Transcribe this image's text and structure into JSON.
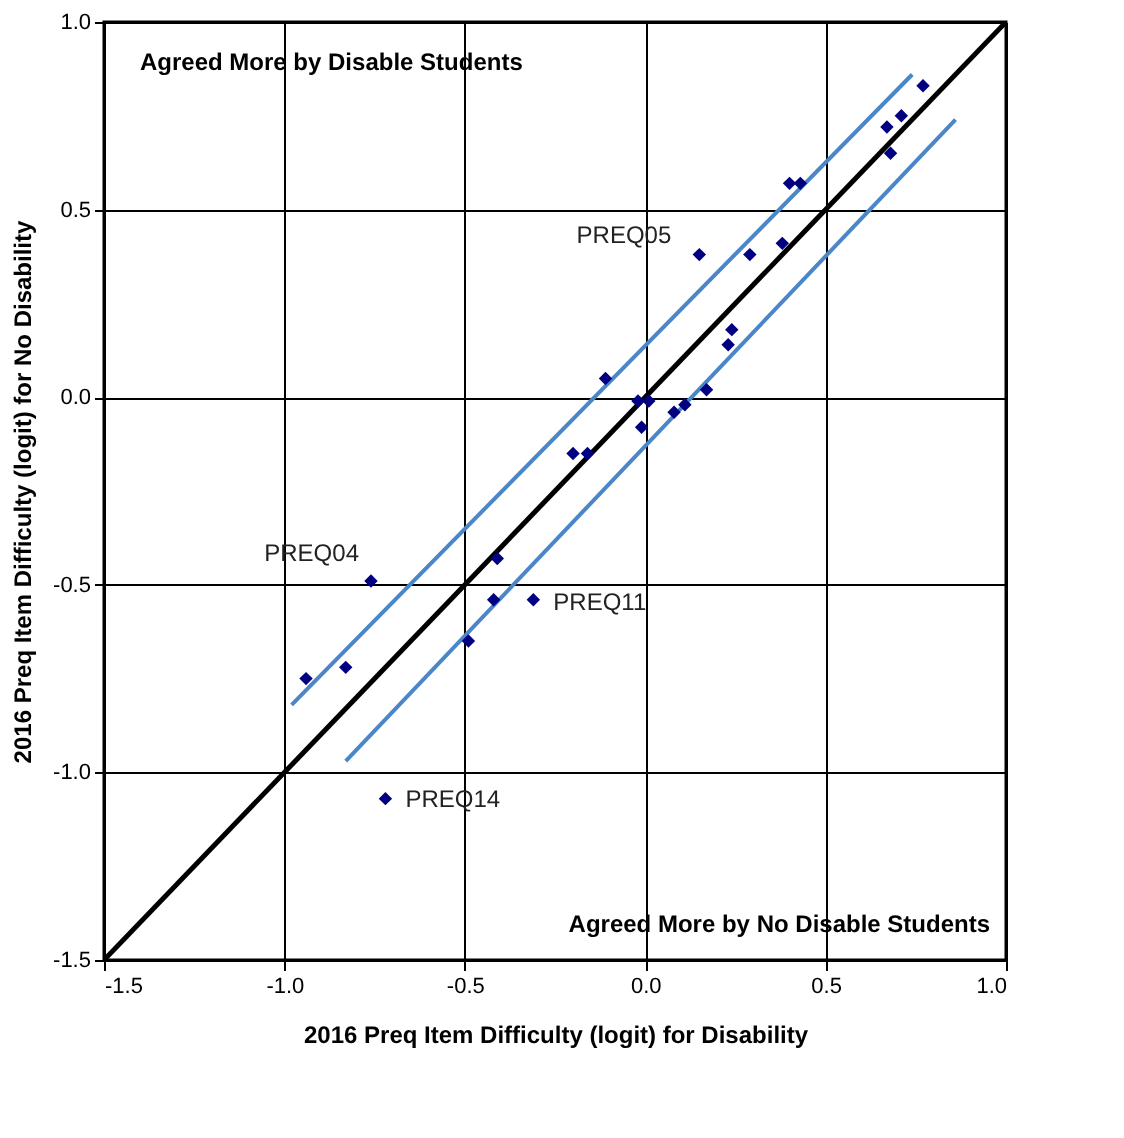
{
  "chart_data": {
    "type": "scatter",
    "xlabel": "2016 Preq Item Difficulty (logit) for Disability",
    "ylabel": "2016 Preq Item Difficulty (logit) for No Disability",
    "xlim": [
      -1.5,
      1.0
    ],
    "ylim": [
      -1.5,
      1.0
    ],
    "xticks": [
      -1.5,
      {
        "value": -1.0,
        "label": "-1.0"
      },
      -0.5,
      {
        "value": 0,
        "label": "0.0"
      },
      0.5,
      {
        "value": 1.0,
        "label": "1.0"
      }
    ],
    "yticks": [
      -1.5,
      {
        "value": -1.0,
        "label": "-1.0"
      },
      -0.5,
      {
        "value": 0,
        "label": "0.0"
      },
      0.5,
      {
        "value": 1.0,
        "label": "1.0"
      }
    ],
    "grid": true,
    "series": [
      {
        "type": "line",
        "color": "#000000",
        "line_style": "solid",
        "x": [
          -1.5,
          1.0
        ],
        "values": [
          -1.5,
          1.0
        ]
      },
      {
        "type": "line",
        "color": "#4a86c8",
        "line_style": "solid",
        "x": [
          -0.98,
          0.74
        ],
        "values": [
          -0.82,
          0.86
        ]
      },
      {
        "type": "line",
        "color": "#4a86c8",
        "line_style": "solid",
        "x": [
          -0.83,
          0.86
        ],
        "values": [
          -0.97,
          0.74
        ]
      },
      {
        "color": "#000080",
        "marker": "diamond",
        "x": [
          -0.94,
          -0.83,
          -0.76,
          -0.41,
          -0.42,
          -0.31,
          -0.49,
          -0.72,
          0.77,
          0.71,
          0.67,
          0.68,
          0.4,
          0.43,
          0.15,
          0.29,
          0.38,
          0.24,
          0.23,
          -0.11,
          0.17,
          -0.02,
          0.01,
          0.11,
          0.08,
          -0.01,
          -0.2,
          -0.16
        ],
        "values": [
          -0.75,
          -0.72,
          -0.49,
          -0.43,
          -0.54,
          -0.54,
          -0.65,
          -1.07,
          0.83,
          0.75,
          0.72,
          0.65,
          0.57,
          0.57,
          0.38,
          0.38,
          0.41,
          0.18,
          0.14,
          0.05,
          0.02,
          -0.01,
          -0.01,
          -0.02,
          -0.04,
          -0.08,
          -0.15,
          -0.15
        ]
      }
    ],
    "annotations": [
      "Agreed More by Disable Students",
      "Agreed More by No Disable Students",
      {
        "text": "PREQ04",
        "x": -0.76,
        "y": -0.49
      },
      {
        "text": "PREQ05",
        "x": 0.15,
        "y": 0.38
      },
      {
        "text": "PREQ11",
        "x": -0.31,
        "y": -0.54
      },
      {
        "text": "PREQ14",
        "x": -0.72,
        "y": -1.07
      }
    ]
  }
}
